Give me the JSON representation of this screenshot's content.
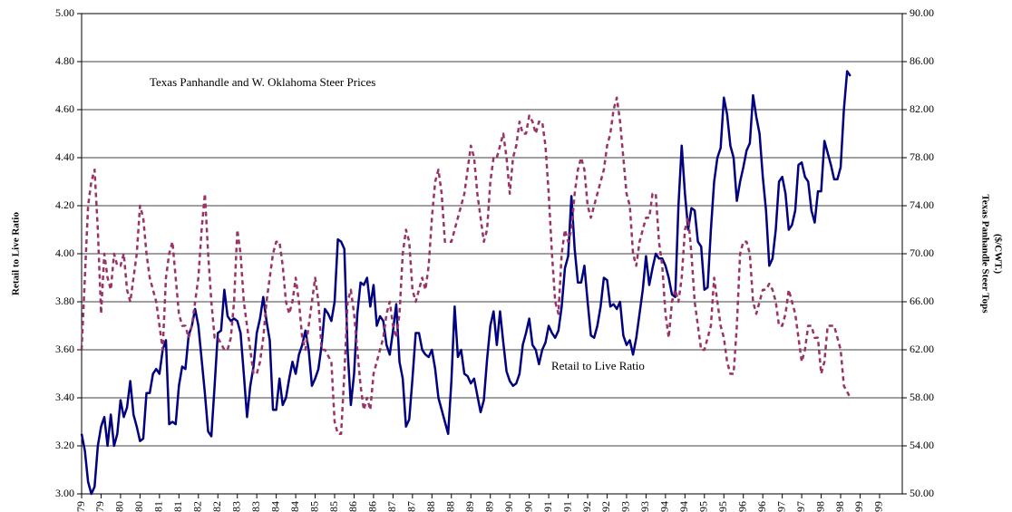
{
  "chart_data": {
    "type": "line",
    "annotations": [
      "Texas Panhandle and W. Oklahoma Steer Prices",
      "Retail to Live Ratio"
    ],
    "ylabel": "Retail to Live Ratio",
    "y2label": [
      "Texas Panhandle Steer Tops",
      "($/CWT.)"
    ],
    "categories": [
      "Jan-79",
      null,
      null,
      null,
      null,
      null,
      "Jul-79",
      null,
      null,
      null,
      null,
      null,
      "Jan-80",
      null,
      null,
      null,
      null,
      null,
      "Jul-80",
      null,
      null,
      null,
      null,
      null,
      "Jan-81",
      null,
      null,
      null,
      null,
      null,
      "Jul-81",
      null,
      null,
      null,
      null,
      null,
      "Jan-82",
      null,
      null,
      null,
      null,
      null,
      "Jul-82",
      null,
      null,
      null,
      null,
      null,
      "Jan-83",
      null,
      null,
      null,
      null,
      null,
      "Jul-83",
      null,
      null,
      null,
      null,
      null,
      "Jan-84",
      null,
      null,
      null,
      null,
      null,
      "Jul-84",
      null,
      null,
      null,
      null,
      null,
      "Jan-85",
      null,
      null,
      null,
      null,
      null,
      "Jul-85",
      null,
      null,
      null,
      null,
      null,
      "Jan-86",
      null,
      null,
      null,
      null,
      null,
      "Jul-86",
      null,
      null,
      null,
      null,
      null,
      "Jan-87",
      null,
      null,
      null,
      null,
      null,
      "Jul-87",
      null,
      null,
      null,
      null,
      null,
      "Jan-88",
      null,
      null,
      null,
      null,
      null,
      "Jul-88",
      null,
      null,
      null,
      null,
      null,
      "Jan-89",
      null,
      null,
      null,
      null,
      null,
      "Jul-89",
      null,
      null,
      null,
      null,
      null,
      "Jan-90",
      null,
      null,
      null,
      null,
      null,
      "Jul-90",
      null,
      null,
      null,
      null,
      null,
      "Jan-91",
      null,
      null,
      null,
      null,
      null,
      "Jul-91",
      null,
      null,
      null,
      null,
      null,
      "Jan-92",
      null,
      null,
      null,
      null,
      null,
      "Jul-92",
      null,
      null,
      null,
      null,
      null,
      "Jan-93",
      null,
      null,
      null,
      null,
      null,
      "Jul-93",
      null,
      null,
      null,
      null,
      null,
      "Jan-94",
      null,
      null,
      null,
      null,
      null,
      "Jul-94",
      null,
      null,
      null,
      null,
      null,
      "Jan-95",
      null,
      null,
      null,
      null,
      null,
      "Jul-95",
      null,
      null,
      null,
      null,
      null,
      "Jan-96",
      null,
      null,
      null,
      null,
      null,
      "Jul-96",
      null,
      null,
      null,
      null,
      null,
      "Jan-97",
      null,
      null,
      null,
      null,
      null,
      "Jul-97",
      null,
      null,
      null,
      null,
      null,
      "Jan-98",
      null,
      null,
      null,
      null,
      null,
      "Jul-98",
      null,
      null,
      null,
      null,
      null,
      "Jan-99",
      null,
      null,
      null,
      null,
      null,
      "Jul-99"
    ],
    "series": [
      {
        "color": "#000080",
        "dashed": false,
        "values": [
          3.25,
          3.18,
          3.05,
          3.0,
          3.03,
          3.2,
          3.28,
          3.32,
          3.2,
          3.33,
          3.2,
          3.25,
          3.39,
          3.32,
          3.36,
          3.47,
          3.33,
          3.28,
          3.22,
          3.23,
          3.42,
          3.42,
          3.5,
          3.52,
          3.5,
          3.6,
          3.64,
          3.29,
          3.3,
          3.29,
          3.45,
          3.53,
          3.52,
          3.66,
          3.7,
          3.77,
          3.7,
          3.56,
          3.42,
          3.26,
          3.24,
          3.45,
          3.67,
          3.68,
          3.85,
          3.74,
          3.72,
          3.73,
          3.72,
          3.67,
          3.5,
          3.32,
          3.45,
          3.53,
          3.67,
          3.73,
          3.82,
          3.72,
          3.64,
          3.35,
          3.35,
          3.48,
          3.37,
          3.4,
          3.48,
          3.55,
          3.5,
          3.58,
          3.62,
          3.68,
          3.6,
          3.45,
          3.48,
          3.52,
          3.62,
          3.77,
          3.75,
          3.72,
          3.8,
          4.06,
          4.05,
          4.02,
          3.6,
          3.37,
          3.5,
          3.75,
          3.88,
          3.87,
          3.9,
          3.78,
          3.87,
          3.7,
          3.74,
          3.72,
          3.62,
          3.58,
          3.68,
          3.79,
          3.55,
          3.48,
          3.28,
          3.31,
          3.48,
          3.67,
          3.67,
          3.6,
          3.58,
          3.57,
          3.6,
          3.52,
          3.4,
          3.35,
          3.3,
          3.25,
          3.47,
          3.78,
          3.57,
          3.6,
          3.5,
          3.49,
          3.46,
          3.48,
          3.41,
          3.34,
          3.39,
          3.56,
          3.7,
          3.76,
          3.62,
          3.76,
          3.63,
          3.51,
          3.47,
          3.45,
          3.46,
          3.5,
          3.62,
          3.67,
          3.73,
          3.62,
          3.6,
          3.54,
          3.6,
          3.63,
          3.7,
          3.67,
          3.65,
          3.68,
          3.78,
          3.94,
          3.99,
          4.24,
          4.02,
          3.88,
          3.88,
          3.95,
          3.8,
          3.66,
          3.65,
          3.7,
          3.78,
          3.9,
          3.89,
          3.78,
          3.79,
          3.77,
          3.8,
          3.66,
          3.62,
          3.64,
          3.58,
          3.65,
          3.75,
          3.85,
          3.99,
          3.87,
          3.94,
          4.0,
          3.98,
          3.98,
          3.95,
          3.9,
          3.83,
          3.82,
          4.2,
          4.45,
          4.25,
          4.1,
          4.19,
          4.18,
          4.05,
          4.03,
          3.85,
          3.86,
          4.1,
          4.3,
          4.4,
          4.44,
          4.65,
          4.58,
          4.45,
          4.4,
          4.22,
          4.3,
          4.36,
          4.43,
          4.46,
          4.66,
          4.57,
          4.5,
          4.32,
          4.18,
          3.95,
          3.98,
          4.1,
          4.3,
          4.32,
          4.25,
          4.1,
          4.12,
          4.18,
          4.37,
          4.38,
          4.32,
          4.3,
          4.18,
          4.13,
          4.26,
          4.26,
          4.47,
          4.42,
          4.37,
          4.31,
          4.31,
          4.36,
          4.6,
          4.76,
          4.74,
          null,
          null,
          null,
          null,
          null,
          null,
          null,
          null,
          null
        ]
      },
      {
        "color": "#993366",
        "dashed": true,
        "axis": "y2",
        "values": [
          62,
          68,
          74,
          76,
          77,
          72,
          65,
          70,
          68,
          67,
          70,
          69,
          69,
          70,
          67,
          66,
          68,
          70,
          74,
          73,
          70,
          68,
          67,
          66,
          64,
          62,
          68,
          70,
          71,
          68,
          65,
          64,
          64,
          63,
          64,
          66,
          68,
          72,
          75,
          70,
          66,
          63,
          63,
          62.5,
          62,
          62,
          63,
          66,
          72,
          70,
          66,
          64,
          62,
          60,
          60,
          61,
          63,
          66,
          68,
          70,
          71,
          71,
          69,
          66,
          65,
          66,
          68,
          66,
          63,
          62,
          64,
          66,
          68,
          66,
          62,
          62,
          61.5,
          61,
          56,
          55,
          55,
          60,
          66,
          67,
          65,
          62,
          59,
          57,
          58,
          57,
          60,
          61,
          62,
          63,
          65,
          66,
          64,
          63,
          65,
          70,
          72,
          71,
          67,
          66,
          67,
          68,
          67,
          69,
          73,
          76,
          77,
          75,
          71,
          71,
          71,
          72,
          73,
          74,
          75,
          77,
          79,
          78,
          75,
          73,
          71,
          72,
          76,
          78,
          78,
          79,
          80,
          78,
          75,
          78,
          79,
          81,
          80,
          80,
          81.5,
          81,
          80,
          81,
          81,
          79,
          75,
          70,
          66,
          65,
          70,
          72,
          71,
          72,
          75,
          77,
          78,
          77,
          74,
          73,
          74,
          75,
          76,
          77,
          79,
          80,
          82,
          83,
          81,
          78,
          75,
          74,
          70,
          69,
          71,
          72,
          73,
          73,
          75,
          75,
          71,
          69,
          65,
          63,
          66,
          67,
          66,
          68,
          72,
          73,
          70,
          66,
          64,
          62,
          62,
          63,
          64,
          68,
          66,
          64,
          63,
          61,
          60,
          60,
          64,
          70,
          71,
          71,
          70,
          66,
          65,
          66,
          67,
          67,
          67.5,
          67,
          66,
          64,
          64,
          65,
          67,
          66,
          65,
          63,
          61,
          62,
          64,
          64,
          63,
          63,
          60,
          61,
          64,
          64,
          64,
          63,
          62,
          59,
          58.5,
          58,
          null,
          null,
          null,
          null,
          null,
          null,
          null,
          null,
          null
        ]
      }
    ],
    "ylim": [
      3,
      5
    ],
    "yticks": [
      {
        "value": 3,
        "label": "3.00"
      },
      {
        "value": 3.2,
        "label": "3.20"
      },
      {
        "value": 3.4,
        "label": "3.40"
      },
      {
        "value": 3.6,
        "label": "3.60"
      },
      {
        "value": 3.8,
        "label": "3.80"
      },
      {
        "value": 4,
        "label": "4.00"
      },
      {
        "value": 4.2,
        "label": "4.20"
      },
      {
        "value": 4.4,
        "label": "4.40"
      },
      {
        "value": 4.6,
        "label": "4.60"
      },
      {
        "value": 4.8,
        "label": "4.80"
      },
      {
        "value": 5,
        "label": "5.00"
      }
    ],
    "y2lim": [
      50,
      90
    ],
    "y2ticks": [
      {
        "value": 50,
        "label": "50.00"
      },
      {
        "value": 54,
        "label": "54.00"
      },
      {
        "value": 58,
        "label": "58.00"
      },
      {
        "value": 62,
        "label": "62.00"
      },
      {
        "value": 66,
        "label": "66.00"
      },
      {
        "value": 70,
        "label": "70.00"
      },
      {
        "value": 74,
        "label": "74.00"
      },
      {
        "value": 78,
        "label": "78.00"
      },
      {
        "value": 82,
        "label": "82.00"
      },
      {
        "value": 86,
        "label": "86.00"
      },
      {
        "value": 90,
        "label": "90.00"
      }
    ],
    "grid": true
  }
}
